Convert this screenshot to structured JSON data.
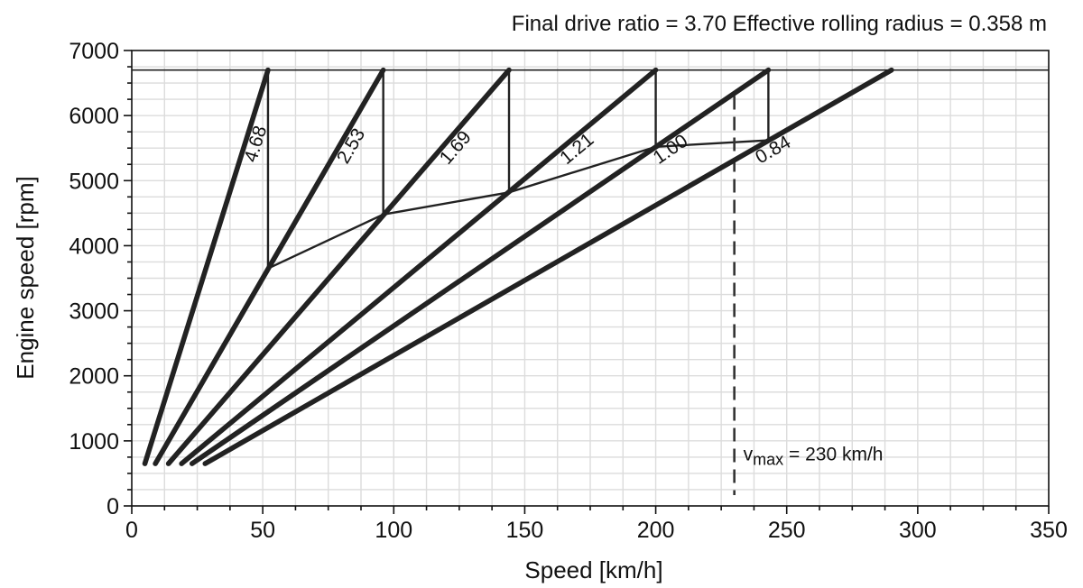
{
  "header": {
    "info_text": "Final drive ratio = 3.70  Effective rolling radius = 0.358 m"
  },
  "chart_data": {
    "type": "line",
    "title": "",
    "xlabel": "Speed [km/h]",
    "ylabel": "Engine speed [rpm]",
    "xlim": [
      0,
      350
    ],
    "ylim": [
      0,
      7000
    ],
    "x_ticks": [
      "0",
      "50",
      "100",
      "150",
      "200",
      "250",
      "300",
      "350"
    ],
    "y_ticks": [
      "0",
      "1000",
      "2000",
      "3000",
      "4000",
      "5000",
      "6000",
      "7000"
    ],
    "grid": true,
    "rpm_limit": 6700,
    "gear_lines": [
      {
        "ratio_label": "4.68",
        "x_start": 5,
        "y_start": 650,
        "x_end": 52,
        "y_end": 6700
      },
      {
        "ratio_label": "2.53",
        "x_start": 9,
        "y_start": 650,
        "x_end": 96,
        "y_end": 6700
      },
      {
        "ratio_label": "1.69",
        "x_start": 14,
        "y_start": 650,
        "x_end": 144,
        "y_end": 6700
      },
      {
        "ratio_label": "1.21",
        "x_start": 19,
        "y_start": 650,
        "x_end": 200,
        "y_end": 6700
      },
      {
        "ratio_label": "1.00",
        "x_start": 23,
        "y_start": 650,
        "x_end": 243,
        "y_end": 6700
      },
      {
        "ratio_label": "0.84",
        "x_start": 28,
        "y_start": 650,
        "x_end": 290,
        "y_end": 6700
      }
    ],
    "shift_drops": [
      {
        "x": 52,
        "y_from": 6700,
        "y_to": 3650
      },
      {
        "x": 96,
        "y_from": 6700,
        "y_to": 4480
      },
      {
        "x": 144,
        "y_from": 6700,
        "y_to": 4820
      },
      {
        "x": 200,
        "y_from": 6700,
        "y_to": 5520
      },
      {
        "x": 243,
        "y_from": 6700,
        "y_to": 5620
      }
    ],
    "shift_curve": [
      [
        52,
        3650
      ],
      [
        96,
        4480
      ],
      [
        144,
        4820
      ],
      [
        200,
        5520
      ],
      [
        243,
        5620
      ]
    ],
    "vmax": {
      "x": 230,
      "y_top": 6300,
      "label_main": "v",
      "label_sub": "max",
      "label_rest": " = 230 km/h"
    }
  }
}
